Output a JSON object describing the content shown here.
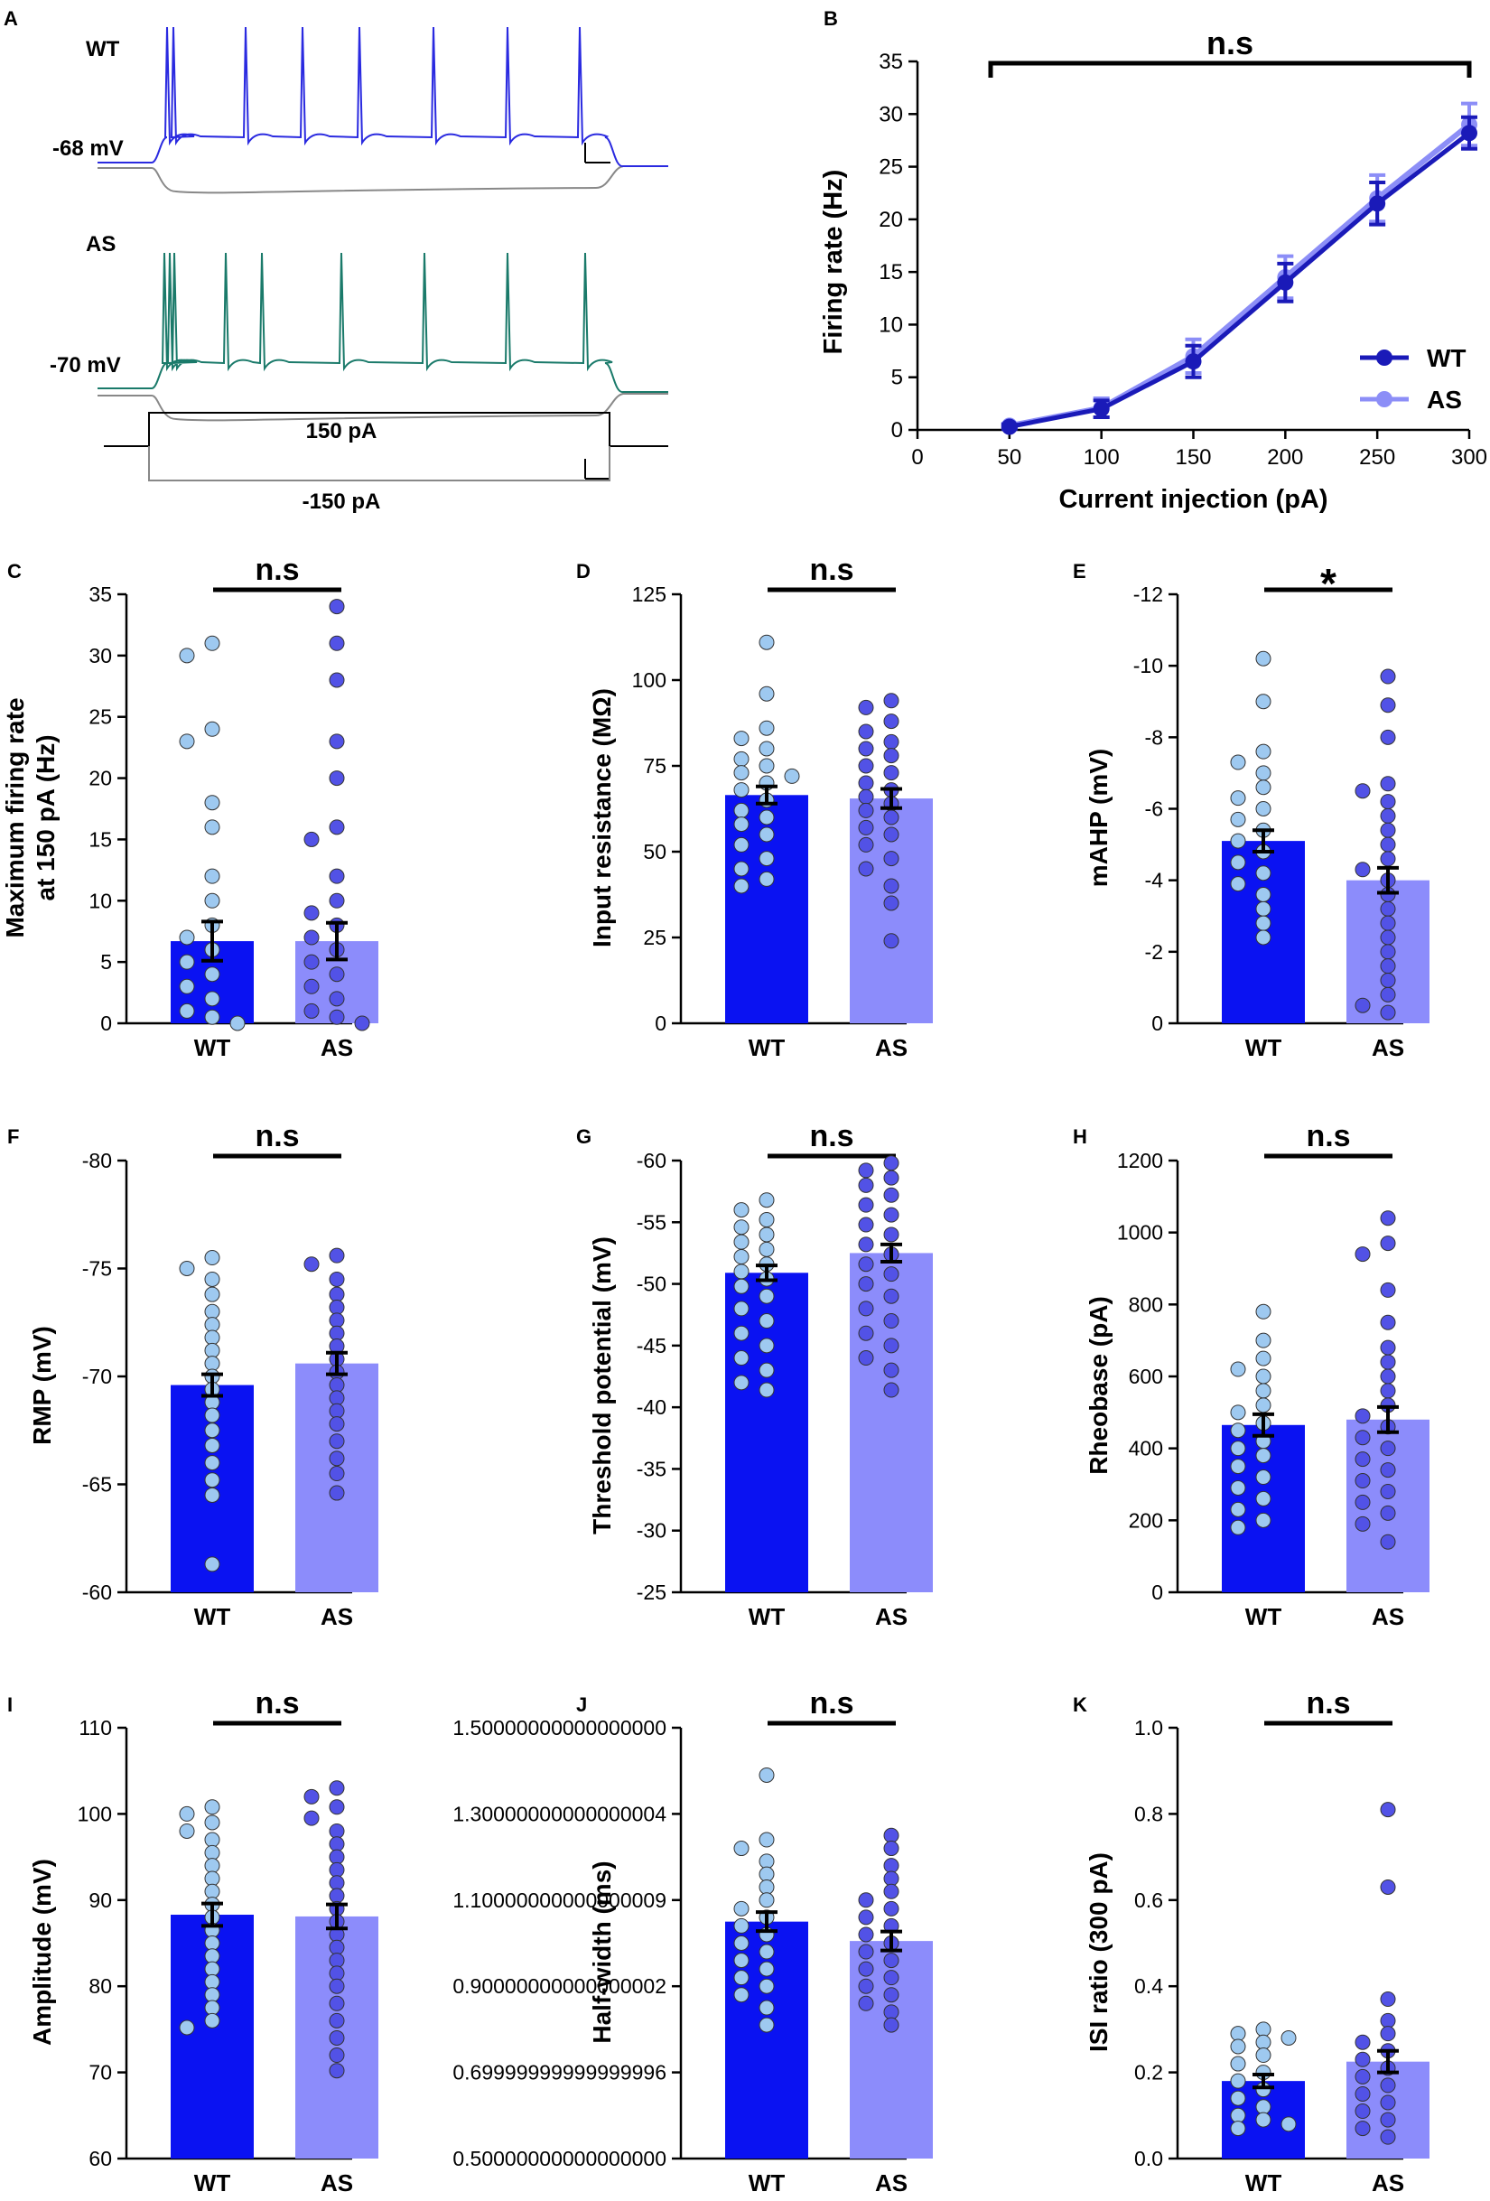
{
  "colors": {
    "wt_bar": "#0a12f2",
    "as_bar": "#8c8cfb",
    "wt_dot": "#9ec9f0",
    "as_dot": "#5252e6",
    "wt_line": "#1a1ab8",
    "as_line": "#8c8ef7",
    "trace_wt": "#2a2ae0",
    "trace_as": "#1a7a6a",
    "trace_neg": "#888888"
  },
  "panel_a": {
    "letter": "A",
    "wt_label": "WT",
    "as_label": "AS",
    "wt_vm": "-68 mV",
    "as_vm": "-70 mV",
    "stim_pos": "150 pA",
    "stim_neg": "-150 pA"
  },
  "chart_data": [
    {
      "panel": "B",
      "type": "line",
      "xlabel": "Current injection (pA)",
      "ylabel": "Firing rate (Hz)",
      "xlim": [
        0,
        300
      ],
      "ylim": [
        0,
        35
      ],
      "xticks": [
        0,
        50,
        100,
        150,
        200,
        250,
        300
      ],
      "yticks": [
        0,
        5,
        10,
        15,
        20,
        25,
        30,
        35
      ],
      "significance": "n.s",
      "legend_position": "bottom-right",
      "series": [
        {
          "name": "WT",
          "x": [
            50,
            100,
            150,
            200,
            250,
            300
          ],
          "y": [
            0.3,
            2.0,
            6.5,
            14.0,
            21.5,
            28.2
          ],
          "err": [
            0.2,
            0.8,
            1.5,
            1.8,
            2.0,
            1.5
          ]
        },
        {
          "name": "AS",
          "x": [
            50,
            100,
            150,
            200,
            250,
            300
          ],
          "y": [
            0.4,
            2.1,
            7.0,
            14.5,
            22.0,
            29.0
          ],
          "err": [
            0.2,
            0.9,
            1.6,
            2.0,
            2.2,
            2.0
          ]
        }
      ]
    },
    {
      "panel": "C",
      "type": "bar",
      "ylabel": [
        "Maximum firing rate",
        "at 150 pA (Hz)"
      ],
      "ylim": [
        0,
        35
      ],
      "yticks": [
        0,
        5,
        10,
        15,
        20,
        25,
        30,
        35
      ],
      "significance": "n.s",
      "categories": [
        "WT",
        "AS"
      ],
      "values": [
        6.7,
        6.7
      ],
      "errors": [
        1.6,
        1.5
      ],
      "points": [
        [
          31,
          30,
          24,
          23,
          18,
          16,
          12,
          10,
          8,
          7,
          6,
          5,
          4,
          3,
          2,
          1,
          0.5,
          0
        ],
        [
          34,
          31,
          28,
          23,
          20,
          16,
          15,
          12,
          10,
          9,
          8,
          7,
          6,
          5,
          4,
          3,
          2,
          1,
          0.5,
          0
        ]
      ]
    },
    {
      "panel": "D",
      "type": "bar",
      "ylabel": "Input  resistance (MΩ)",
      "ylim": [
        0,
        125
      ],
      "yticks": [
        0,
        25,
        50,
        75,
        100,
        125
      ],
      "significance": "n.s",
      "categories": [
        "WT",
        "AS"
      ],
      "values": [
        66.5,
        65.5
      ],
      "errors": [
        2.5,
        2.8
      ],
      "points": [
        [
          111,
          96,
          86,
          83,
          80,
          77,
          75,
          73,
          72,
          70,
          68,
          65,
          62,
          60,
          58,
          55,
          52,
          48,
          45,
          42,
          40
        ],
        [
          94,
          92,
          88,
          85,
          82,
          80,
          78,
          75,
          73,
          70,
          68,
          66,
          64,
          62,
          60,
          57,
          55,
          52,
          48,
          45,
          40,
          35,
          24
        ]
      ]
    },
    {
      "panel": "E",
      "type": "bar",
      "ylabel": "mAHP (mV)",
      "ylim": [
        0,
        -12
      ],
      "yticks": [
        0,
        -2,
        -4,
        -6,
        -8,
        -10,
        -12
      ],
      "significance": "*",
      "categories": [
        "WT",
        "AS"
      ],
      "values": [
        -5.1,
        -4.0
      ],
      "errors": [
        0.3,
        0.35
      ],
      "points": [
        [
          -10.2,
          -9.0,
          -7.6,
          -7.3,
          -7.0,
          -6.6,
          -6.3,
          -6.0,
          -5.7,
          -5.4,
          -5.1,
          -4.8,
          -4.5,
          -4.2,
          -3.9,
          -3.6,
          -3.2,
          -2.8,
          -2.4
        ],
        [
          -9.7,
          -8.9,
          -8.0,
          -6.7,
          -6.5,
          -6.2,
          -5.8,
          -5.4,
          -5.0,
          -4.6,
          -4.3,
          -4.0,
          -3.6,
          -3.2,
          -2.8,
          -2.4,
          -2.0,
          -1.6,
          -1.2,
          -0.8,
          -0.5,
          -0.3
        ]
      ]
    },
    {
      "panel": "F",
      "type": "bar",
      "ylabel": "RMP (mV)",
      "ylim": [
        -60,
        -80
      ],
      "yticks": [
        -60,
        -65,
        -70,
        -75,
        -80
      ],
      "significance": "n.s",
      "categories": [
        "WT",
        "AS"
      ],
      "values": [
        -69.6,
        -70.6
      ],
      "errors": [
        0.5,
        0.5
      ],
      "points": [
        [
          -75.5,
          -75.0,
          -74.5,
          -73.8,
          -73.0,
          -72.4,
          -71.8,
          -71.2,
          -70.6,
          -70.0,
          -69.4,
          -68.8,
          -68.2,
          -67.5,
          -66.8,
          -66.0,
          -65.2,
          -64.5,
          -61.3
        ],
        [
          -75.6,
          -75.2,
          -74.5,
          -73.8,
          -73.2,
          -72.6,
          -72.0,
          -71.4,
          -70.8,
          -70.2,
          -69.6,
          -69.0,
          -68.4,
          -67.8,
          -67.0,
          -66.2,
          -65.5,
          -64.6
        ]
      ]
    },
    {
      "panel": "G",
      "type": "bar",
      "ylabel": "Threshold potential (mV)",
      "ylim": [
        -25,
        -60
      ],
      "yticks": [
        -25,
        -30,
        -35,
        -40,
        -45,
        -50,
        -55,
        -60
      ],
      "significance": "n.s",
      "categories": [
        "WT",
        "AS"
      ],
      "values": [
        -50.9,
        -52.5
      ],
      "errors": [
        0.6,
        0.7
      ],
      "points": [
        [
          -56.8,
          -56.0,
          -55.2,
          -54.6,
          -54.0,
          -53.4,
          -52.8,
          -52.2,
          -51.6,
          -51.0,
          -50.4,
          -49.8,
          -49.0,
          -48.0,
          -47.0,
          -46.0,
          -45.0,
          -44.0,
          -43.0,
          -42.0,
          -41.4
        ],
        [
          -59.8,
          -59.2,
          -58.6,
          -58.0,
          -57.2,
          -56.4,
          -55.6,
          -54.8,
          -54.0,
          -53.2,
          -52.4,
          -51.6,
          -50.8,
          -50.0,
          -49.0,
          -48.0,
          -47.0,
          -46.0,
          -45.0,
          -44.0,
          -43.0,
          -41.4
        ]
      ]
    },
    {
      "panel": "H",
      "type": "bar",
      "ylabel": "Rheobase (pA)",
      "ylim": [
        0,
        1200
      ],
      "yticks": [
        0,
        200,
        400,
        600,
        800,
        1000,
        1200
      ],
      "significance": "n.s",
      "categories": [
        "WT",
        "AS"
      ],
      "values": [
        465,
        480
      ],
      "errors": [
        30,
        35
      ],
      "points": [
        [
          780,
          700,
          650,
          620,
          600,
          560,
          520,
          500,
          470,
          450,
          420,
          400,
          380,
          350,
          320,
          290,
          260,
          230,
          200,
          180
        ],
        [
          1040,
          970,
          940,
          840,
          750,
          680,
          640,
          600,
          560,
          520,
          490,
          460,
          430,
          400,
          370,
          340,
          310,
          280,
          250,
          220,
          190,
          140
        ]
      ]
    },
    {
      "panel": "I",
      "type": "bar",
      "ylabel": "Amplitude (mV)",
      "ylim": [
        60,
        110
      ],
      "yticks": [
        60,
        70,
        80,
        90,
        100,
        110
      ],
      "significance": "n.s",
      "categories": [
        "WT",
        "AS"
      ],
      "values": [
        88.3,
        88.1
      ],
      "errors": [
        1.3,
        1.4
      ],
      "points": [
        [
          100.8,
          100.0,
          99.0,
          98.0,
          97.0,
          95.5,
          94.0,
          92.5,
          91.0,
          89.5,
          88.0,
          86.5,
          85.0,
          83.5,
          82.0,
          80.5,
          79.0,
          77.5,
          76.0,
          75.2
        ],
        [
          103.0,
          102.0,
          100.8,
          99.5,
          98.0,
          96.5,
          95.0,
          93.5,
          92.0,
          90.5,
          89.0,
          87.5,
          86.0,
          84.5,
          83.0,
          81.5,
          80.0,
          78.0,
          76.0,
          74.0,
          72.0,
          70.2
        ]
      ]
    },
    {
      "panel": "J",
      "type": "bar",
      "ylabel": "Half-width (ms)",
      "ylim": [
        0.5,
        1.5
      ],
      "yticks": [
        0.5,
        0.7,
        0.9,
        1.1,
        1.3,
        1.5
      ],
      "significance": "n.s",
      "categories": [
        "WT",
        "AS"
      ],
      "values": [
        1.05,
        1.005
      ],
      "errors": [
        0.022,
        0.022
      ],
      "points": [
        [
          1.39,
          1.24,
          1.22,
          1.19,
          1.16,
          1.13,
          1.1,
          1.08,
          1.06,
          1.04,
          1.02,
          1.0,
          0.98,
          0.96,
          0.94,
          0.92,
          0.9,
          0.88,
          0.85,
          0.81
        ],
        [
          1.25,
          1.22,
          1.18,
          1.15,
          1.12,
          1.1,
          1.08,
          1.06,
          1.04,
          1.02,
          1.0,
          0.98,
          0.96,
          0.94,
          0.92,
          0.9,
          0.88,
          0.86,
          0.84,
          0.81
        ]
      ]
    },
    {
      "panel": "K",
      "type": "bar",
      "ylabel": "ISI ratio (300 pA)",
      "ylim": [
        0,
        1.0
      ],
      "yticks": [
        0.0,
        0.2,
        0.4,
        0.6,
        0.8,
        1.0
      ],
      "significance": "n.s",
      "categories": [
        "WT",
        "AS"
      ],
      "values": [
        0.18,
        0.225
      ],
      "errors": [
        0.015,
        0.025
      ],
      "points": [
        [
          0.3,
          0.29,
          0.28,
          0.27,
          0.26,
          0.24,
          0.22,
          0.2,
          0.18,
          0.16,
          0.14,
          0.12,
          0.1,
          0.09,
          0.08,
          0.07
        ],
        [
          0.81,
          0.63,
          0.37,
          0.32,
          0.29,
          0.27,
          0.25,
          0.23,
          0.21,
          0.19,
          0.17,
          0.15,
          0.13,
          0.11,
          0.09,
          0.07,
          0.05
        ]
      ]
    }
  ]
}
